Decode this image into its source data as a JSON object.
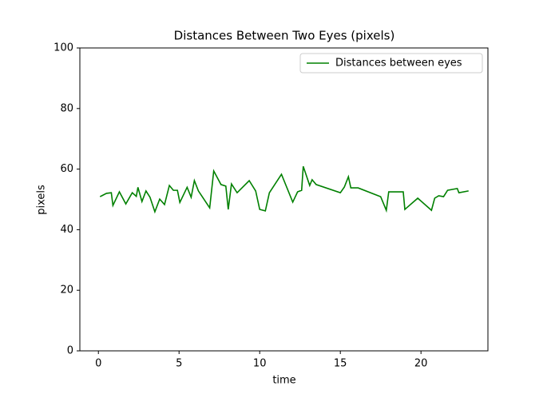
{
  "chart_data": {
    "type": "line",
    "title": "Distances Between Two Eyes (pixels)",
    "x_label": "time",
    "y_label": "pixels",
    "x": [
      0.1,
      0.5,
      0.8,
      0.9,
      1.3,
      1.7,
      2.1,
      2.35,
      2.45,
      2.7,
      2.95,
      3.2,
      3.5,
      3.8,
      4.1,
      4.4,
      4.65,
      4.9,
      5.05,
      5.5,
      5.75,
      5.95,
      6.2,
      6.9,
      7.15,
      7.6,
      7.9,
      8.05,
      8.25,
      8.6,
      9.35,
      9.75,
      10,
      10.35,
      10.6,
      11.35,
      12.05,
      12.35,
      12.6,
      12.7,
      13.1,
      13.25,
      13.5,
      15,
      15.25,
      15.5,
      15.65,
      16.1,
      17.5,
      17.85,
      18,
      18.9,
      19.0,
      19.8,
      20.65,
      20.85,
      21.1,
      21.4,
      21.65,
      22.25,
      22.35,
      22.95
    ],
    "series": [
      {
        "name": "Distances between eyes",
        "color": "#008000",
        "values": [
          50.9,
          52,
          52.2,
          48,
          52.5,
          48.5,
          52.2,
          51,
          54,
          49.3,
          52.8,
          50.7,
          45.9,
          50.1,
          48.3,
          54.6,
          53,
          53,
          49,
          54,
          50.7,
          56.2,
          52.8,
          47.2,
          59.4,
          54.9,
          54.4,
          46.7,
          55.1,
          52.2,
          56.2,
          52.8,
          46.7,
          46.2,
          52.2,
          58.3,
          49.1,
          52.5,
          53,
          60.9,
          54.6,
          56.5,
          54.9,
          52.2,
          54.1,
          57.5,
          53.8,
          53.8,
          50.9,
          46.4,
          52.5,
          52.5,
          46.7,
          50.4,
          46.4,
          50.4,
          51.2,
          50.9,
          53,
          53.6,
          52.2,
          52.8
        ]
      }
    ],
    "xlim": [
      -1.15,
      24.15
    ],
    "xticks": [
      0,
      5,
      10,
      15,
      20
    ],
    "ylim": [
      0,
      100
    ],
    "yticks": [
      0,
      20,
      40,
      60,
      80,
      100
    ],
    "legend": "upper right"
  }
}
